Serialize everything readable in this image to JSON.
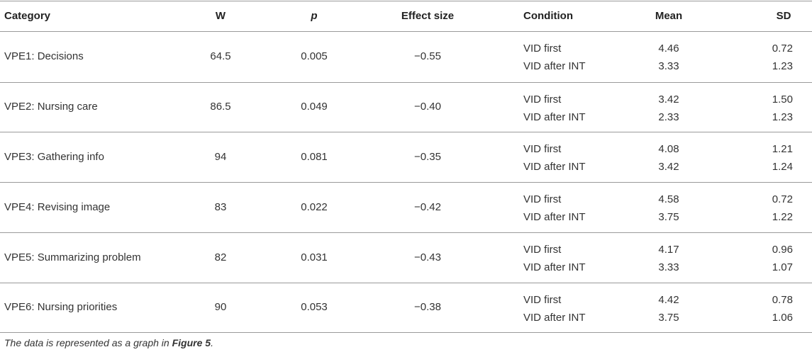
{
  "table": {
    "columns": [
      "Category",
      "W",
      "p",
      "Effect size",
      "Condition",
      "Mean",
      "SD"
    ],
    "rows": [
      {
        "category": "VPE1: Decisions",
        "w": "64.5",
        "p": "0.005",
        "effect_size": "−0.55",
        "conditions": [
          {
            "condition": "VID first",
            "mean": "4.46",
            "sd": "0.72"
          },
          {
            "condition": "VID after INT",
            "mean": "3.33",
            "sd": "1.23"
          }
        ]
      },
      {
        "category": "VPE2: Nursing care",
        "w": "86.5",
        "p": "0.049",
        "effect_size": "−0.40",
        "conditions": [
          {
            "condition": "VID first",
            "mean": "3.42",
            "sd": "1.50"
          },
          {
            "condition": "VID after INT",
            "mean": "2.33",
            "sd": "1.23"
          }
        ]
      },
      {
        "category": "VPE3: Gathering info",
        "w": "94",
        "p": "0.081",
        "effect_size": "−0.35",
        "conditions": [
          {
            "condition": "VID first",
            "mean": "4.08",
            "sd": "1.21"
          },
          {
            "condition": "VID after INT",
            "mean": "3.42",
            "sd": "1.24"
          }
        ]
      },
      {
        "category": "VPE4: Revising image",
        "w": "83",
        "p": "0.022",
        "effect_size": "−0.42",
        "conditions": [
          {
            "condition": "VID first",
            "mean": "4.58",
            "sd": "0.72"
          },
          {
            "condition": "VID after INT",
            "mean": "3.75",
            "sd": "1.22"
          }
        ]
      },
      {
        "category": "VPE5: Summarizing problem",
        "w": "82",
        "p": "0.031",
        "effect_size": "−0.43",
        "conditions": [
          {
            "condition": "VID first",
            "mean": "4.17",
            "sd": "0.96"
          },
          {
            "condition": "VID after INT",
            "mean": "3.33",
            "sd": "1.07"
          }
        ]
      },
      {
        "category": "VPE6: Nursing priorities",
        "w": "90",
        "p": "0.053",
        "effect_size": "−0.38",
        "conditions": [
          {
            "condition": "VID first",
            "mean": "4.42",
            "sd": "0.78"
          },
          {
            "condition": "VID after INT",
            "mean": "3.75",
            "sd": "1.06"
          }
        ]
      }
    ]
  },
  "footnote": {
    "text": "The data is represented as a graph in ",
    "link": "Figure 5",
    "end": "."
  }
}
